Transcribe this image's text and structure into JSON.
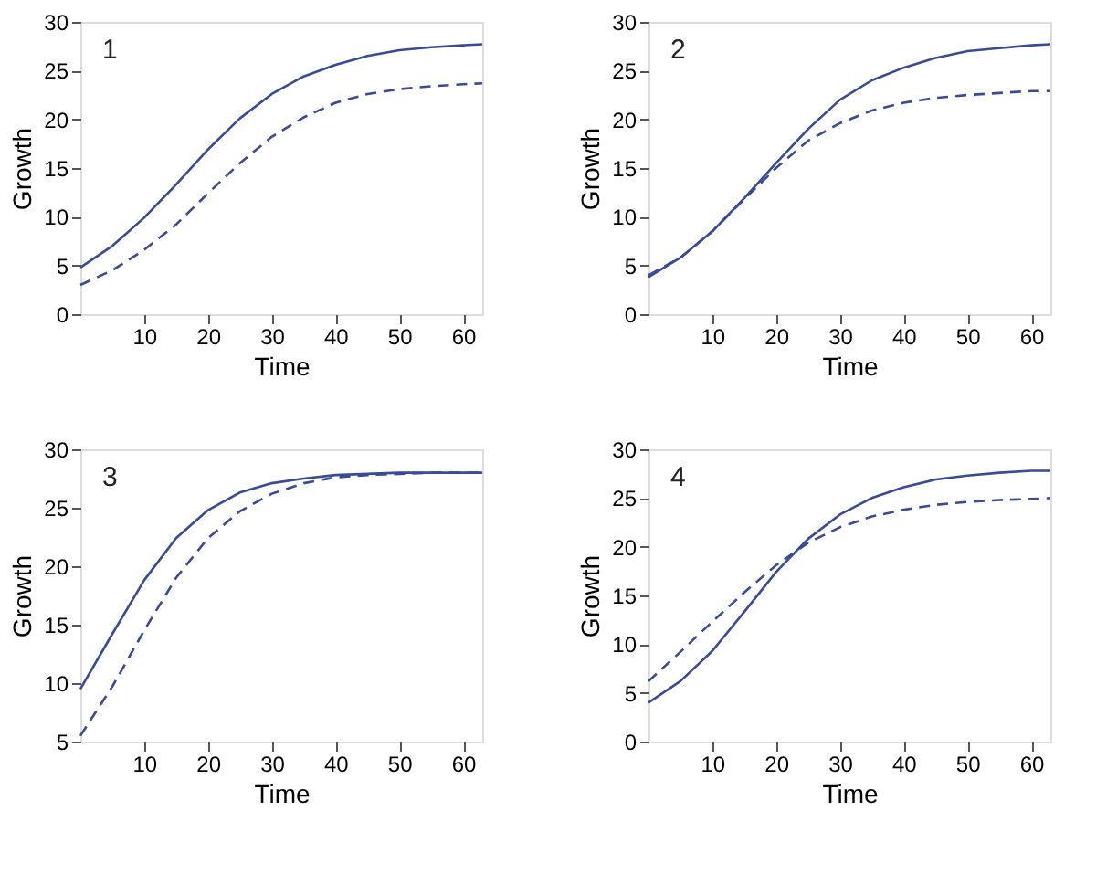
{
  "chart_data": [
    {
      "type": "line",
      "annotations": [
        "1"
      ],
      "xlabel": "Time",
      "ylabel": "Growth",
      "xlim": [
        0,
        63
      ],
      "xticks": [
        10,
        20,
        30,
        40,
        50,
        60
      ],
      "ylim": [
        0,
        30
      ],
      "yticks": [
        0,
        5,
        10,
        15,
        20,
        25,
        30
      ],
      "x": [
        0,
        5,
        10,
        15,
        20,
        25,
        30,
        35,
        40,
        45,
        50,
        55,
        60,
        63
      ],
      "grid": false,
      "legend": false,
      "marker": "none",
      "series": [
        {
          "color": "#3a4a9a",
          "line_style": "solid",
          "values": [
            4.8,
            7,
            9.9,
            13.3,
            16.9,
            20.1,
            22.6,
            24.4,
            25.6,
            26.5,
            27.1,
            27.4,
            27.6,
            27.7
          ]
        },
        {
          "color": "#3a4a9a",
          "line_style": "dashed",
          "values": [
            3,
            4.5,
            6.6,
            9.2,
            12.4,
            15.5,
            18.2,
            20.2,
            21.7,
            22.6,
            23.1,
            23.4,
            23.6,
            23.7
          ]
        }
      ]
    },
    {
      "type": "line",
      "annotations": [
        "2"
      ],
      "xlabel": "Time",
      "ylabel": "Growth",
      "xlim": [
        0,
        63
      ],
      "xticks": [
        10,
        20,
        30,
        40,
        50,
        60
      ],
      "ylim": [
        0,
        30
      ],
      "yticks": [
        0,
        5,
        10,
        15,
        20,
        25,
        30
      ],
      "x": [
        0,
        5,
        10,
        15,
        20,
        25,
        30,
        35,
        40,
        45,
        50,
        55,
        60,
        63
      ],
      "grid": false,
      "legend": false,
      "marker": "none",
      "series": [
        {
          "color": "#3a4a9a",
          "line_style": "solid",
          "values": [
            3.8,
            5.8,
            8.5,
            11.9,
            15.5,
            19,
            22,
            24,
            25.3,
            26.3,
            27,
            27.3,
            27.6,
            27.7
          ]
        },
        {
          "color": "#3a4a9a",
          "line_style": "dashed",
          "values": [
            4,
            5.8,
            8.5,
            11.8,
            15,
            17.8,
            19.6,
            20.9,
            21.7,
            22.2,
            22.5,
            22.7,
            22.9,
            22.9
          ]
        }
      ]
    },
    {
      "type": "line",
      "annotations": [
        "3"
      ],
      "xlabel": "Time",
      "ylabel": "Growth",
      "xlim": [
        0,
        63
      ],
      "xticks": [
        10,
        20,
        30,
        40,
        50,
        60
      ],
      "ylim": [
        5,
        30
      ],
      "yticks": [
        5,
        10,
        15,
        20,
        25,
        30
      ],
      "x": [
        0,
        5,
        10,
        15,
        20,
        25,
        30,
        35,
        40,
        45,
        50,
        55,
        60,
        63
      ],
      "grid": false,
      "legend": false,
      "marker": "none",
      "series": [
        {
          "color": "#3a4a9a",
          "line_style": "solid",
          "values": [
            9.5,
            14.2,
            18.8,
            22.4,
            24.8,
            26.3,
            27.1,
            27.5,
            27.8,
            27.9,
            28,
            28,
            28,
            28
          ]
        },
        {
          "color": "#3a4a9a",
          "line_style": "dashed",
          "values": [
            5.5,
            9.7,
            14.5,
            19,
            22.4,
            24.7,
            26.2,
            27.1,
            27.6,
            27.8,
            27.9,
            28,
            28,
            28
          ]
        }
      ]
    },
    {
      "type": "line",
      "annotations": [
        "4"
      ],
      "xlabel": "Time",
      "ylabel": "Growth",
      "xlim": [
        0,
        63
      ],
      "xticks": [
        10,
        20,
        30,
        40,
        50,
        60
      ],
      "ylim": [
        0,
        30
      ],
      "yticks": [
        0,
        5,
        10,
        15,
        20,
        25,
        30
      ],
      "x": [
        0,
        5,
        10,
        15,
        20,
        25,
        30,
        35,
        40,
        45,
        50,
        55,
        60,
        63
      ],
      "grid": false,
      "legend": false,
      "marker": "none",
      "series": [
        {
          "color": "#3a4a9a",
          "line_style": "solid",
          "values": [
            4,
            6.2,
            9.3,
            13.3,
            17.4,
            20.8,
            23.3,
            25,
            26.1,
            26.9,
            27.3,
            27.6,
            27.8,
            27.8
          ]
        },
        {
          "color": "#3a4a9a",
          "line_style": "dashed",
          "values": [
            6.2,
            9.2,
            12.3,
            15.3,
            18.1,
            20.4,
            22,
            23.1,
            23.8,
            24.3,
            24.6,
            24.8,
            24.9,
            25
          ]
        }
      ]
    }
  ]
}
